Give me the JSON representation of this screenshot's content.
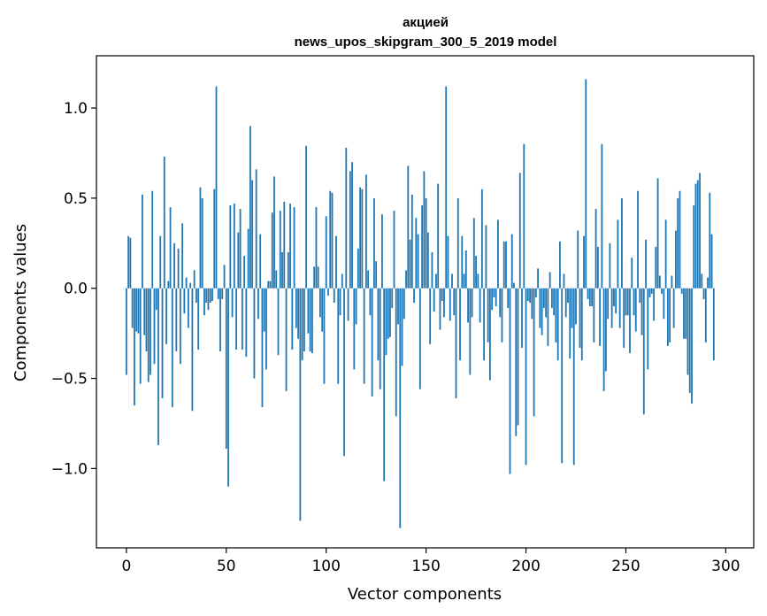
{
  "chart_data": {
    "type": "bar",
    "title_line1": "акцией",
    "title_line2": "news_upos_skipgram_300_5_2019 model",
    "xlabel": "Vector components",
    "ylabel": "Components values",
    "xlim": [
      -15,
      314
    ],
    "ylim": [
      -1.44,
      1.29
    ],
    "xticks": [
      0,
      50,
      100,
      150,
      200,
      250,
      300
    ],
    "xtick_labels": [
      "0",
      "50",
      "100",
      "150",
      "200",
      "250",
      "300"
    ],
    "yticks": [
      -1.0,
      -0.5,
      0.0,
      0.5,
      1.0
    ],
    "ytick_labels": [
      "−1.0",
      "−0.5",
      "0.0",
      "0.5",
      "1.0"
    ],
    "bar_color": "#1f77b4",
    "values": [
      -0.48,
      0.29,
      0.28,
      -0.22,
      -0.65,
      -0.24,
      -0.25,
      -0.53,
      0.52,
      -0.26,
      -0.35,
      -0.52,
      -0.48,
      0.54,
      -0.42,
      -0.12,
      -0.87,
      0.29,
      -0.61,
      0.73,
      -0.31,
      0.04,
      0.45,
      -0.66,
      0.25,
      -0.35,
      0.22,
      -0.42,
      0.36,
      -0.14,
      0.06,
      -0.22,
      0.03,
      -0.68,
      0.1,
      -0.08,
      -0.34,
      0.56,
      0.5,
      -0.15,
      -0.08,
      -0.12,
      -0.08,
      -0.07,
      0.55,
      1.12,
      -0.06,
      -0.35,
      -0.06,
      0.13,
      -0.89,
      -1.1,
      0.46,
      -0.16,
      0.47,
      -0.34,
      0.31,
      0.44,
      -0.34,
      0.18,
      -0.38,
      0.33,
      0.9,
      0.6,
      -0.5,
      0.66,
      -0.17,
      0.3,
      -0.66,
      -0.24,
      -0.45,
      0.04,
      0.04,
      0.42,
      0.62,
      0.1,
      -0.37,
      0.43,
      0.2,
      0.48,
      -0.57,
      0.2,
      0.47,
      -0.34,
      0.45,
      -0.22,
      -0.28,
      -1.29,
      -0.4,
      -0.35,
      0.79,
      -0.25,
      -0.35,
      -0.36,
      0.12,
      0.45,
      0.12,
      -0.16,
      -0.24,
      -0.53,
      0.4,
      -0.04,
      0.54,
      0.53,
      -0.08,
      0.29,
      -0.53,
      -0.15,
      0.08,
      -0.93,
      0.78,
      -0.18,
      0.65,
      0.7,
      -0.45,
      -0.2,
      0.22,
      0.56,
      0.55,
      -0.53,
      0.63,
      0.1,
      -0.15,
      -0.6,
      0.5,
      0.15,
      -0.4,
      -0.56,
      0.41,
      -1.07,
      -0.37,
      -0.28,
      -0.27,
      -0.11,
      0.43,
      -0.71,
      -0.2,
      -1.33,
      -0.43,
      -0.17,
      0.1,
      0.68,
      0.27,
      0.52,
      -0.08,
      0.39,
      0.3,
      -0.56,
      0.46,
      0.65,
      0.5,
      0.31,
      -0.31,
      0.2,
      -0.13,
      0.08,
      0.58,
      -0.23,
      -0.07,
      -0.16,
      1.12,
      0.29,
      -0.18,
      0.08,
      -0.15,
      -0.61,
      0.5,
      -0.4,
      0.29,
      0.08,
      0.21,
      -0.19,
      -0.48,
      -0.16,
      0.39,
      0.18,
      0.08,
      -0.19,
      0.55,
      -0.4,
      0.35,
      -0.3,
      -0.51,
      -0.12,
      -0.05,
      -0.1,
      0.38,
      -0.16,
      -0.3,
      0.26,
      0.26,
      -0.11,
      -1.03,
      0.3,
      0.03,
      -0.82,
      -0.76,
      0.64,
      -0.33,
      0.8,
      -0.98,
      -0.07,
      -0.08,
      -0.17,
      -0.71,
      -0.05,
      0.11,
      -0.22,
      -0.26,
      -0.11,
      -0.16,
      -0.32,
      0.09,
      -0.11,
      -0.15,
      -0.3,
      -0.4,
      0.26,
      -0.97,
      0.08,
      -0.16,
      -0.08,
      -0.39,
      -0.22,
      -0.98,
      -0.2,
      0.32,
      -0.33,
      -0.4,
      0.29,
      1.16,
      -0.06,
      -0.1,
      -0.1,
      -0.3,
      0.44,
      0.23,
      -0.32,
      0.8,
      -0.57,
      -0.46,
      -0.17,
      0.25,
      -0.22,
      -0.1,
      -0.14,
      0.38,
      -0.22,
      0.5,
      -0.33,
      -0.15,
      -0.15,
      -0.36,
      0.17,
      -0.15,
      -0.24,
      0.54,
      -0.08,
      -0.26,
      -0.7,
      0.27,
      -0.45,
      -0.05,
      -0.03,
      -0.18,
      0.23,
      0.61,
      0.07,
      -0.03,
      -0.17,
      0.38,
      -0.32,
      -0.3,
      0.07,
      -0.22,
      0.32,
      0.5,
      0.54,
      -0.03,
      -0.28,
      -0.28,
      -0.48,
      -0.58,
      -0.64,
      0.46,
      0.58,
      0.6,
      0.64,
      0.08,
      -0.06,
      -0.3,
      0.06,
      0.53,
      0.3,
      -0.4
    ]
  }
}
